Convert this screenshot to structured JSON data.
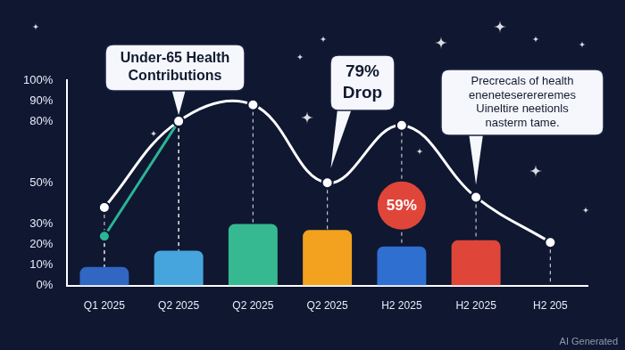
{
  "chart_data": {
    "type": "bar",
    "categories": [
      "Q1 2025",
      "Q2 2025",
      "Q2 2025",
      "Q2 2025",
      "H2 2025",
      "H2 2025",
      "H2 205"
    ],
    "series": [
      {
        "type": "bar",
        "colors": [
          "#3166c2",
          "#47a5de",
          "#36b990",
          "#f2a21e",
          "#2e6fcf",
          "#e0453a"
        ],
        "values": [
          9,
          17,
          30,
          27,
          19,
          22,
          null
        ]
      },
      {
        "type": "line",
        "color": "#ffffff",
        "marker": "circle",
        "line_style": "solid",
        "values": [
          38,
          80,
          88,
          50,
          78,
          43,
          21
        ]
      },
      {
        "type": "line",
        "color": "#2bb596",
        "marker": "circle",
        "line_style": "solid",
        "values": [
          24,
          80,
          null,
          null,
          null,
          null,
          null
        ]
      }
    ],
    "ylim": [
      0,
      100
    ],
    "yticks": [
      {
        "value": 0,
        "label": "0%"
      },
      {
        "value": 10,
        "label": "10%"
      },
      {
        "value": 20,
        "label": "20%"
      },
      {
        "value": 30,
        "label": "30%"
      },
      {
        "value": 50,
        "label": "50%"
      },
      {
        "value": 80,
        "label": "80%"
      },
      {
        "value": 90,
        "label": "90%"
      },
      {
        "value": 100,
        "label": "100%"
      }
    ],
    "grid": false,
    "annotations": [
      "Under-65 Health\nContributions",
      "79%\nDrop",
      "59%",
      "Precrecals of health\neneneteserereremes\nUineltire neetionls\nnasterm tame."
    ],
    "footnote": "AI Generated"
  }
}
